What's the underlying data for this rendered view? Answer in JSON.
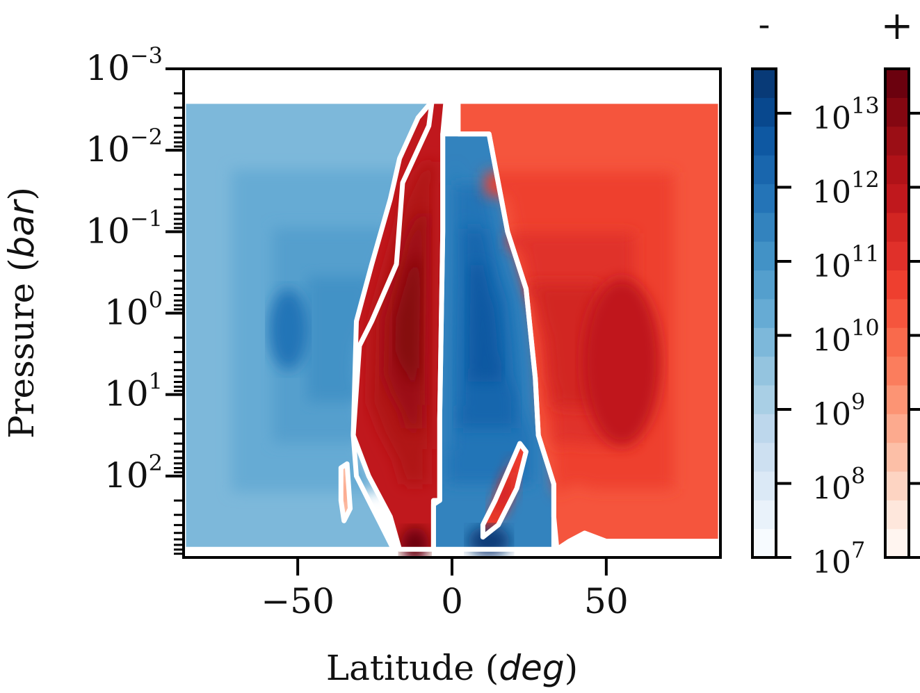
{
  "chart_data": {
    "type": "heatmap",
    "subtype": "filled-contour",
    "xlabel": {
      "text": "Latitude (",
      "italic": "deg",
      "close": ")"
    },
    "ylabel": {
      "text": "Pressure (",
      "italic": "bar",
      "close": ")"
    },
    "xlim": [
      -87,
      87
    ],
    "ylim_log10": [
      3,
      -3
    ],
    "y_scale": "log",
    "y_inverted": true,
    "x_ticks": [
      {
        "value": -50,
        "label": "−50"
      },
      {
        "value": 0,
        "label": "0"
      },
      {
        "value": 50,
        "label": "50"
      }
    ],
    "y_ticks": [
      {
        "exp": -3,
        "base": "10",
        "sup": "−3"
      },
      {
        "exp": -2,
        "base": "10",
        "sup": "−2"
      },
      {
        "exp": -1,
        "base": "10",
        "sup": "−1"
      },
      {
        "exp": 0,
        "base": "10",
        "sup": "0"
      },
      {
        "exp": 1,
        "base": "10",
        "sup": "1"
      },
      {
        "exp": 2,
        "base": "10",
        "sup": "2"
      }
    ],
    "zero_contour_color": "#ffffff",
    "colorbars": [
      {
        "sign_label": "-",
        "cmap": "Blues",
        "scale": "log",
        "range_exp": [
          7,
          13.6
        ]
      },
      {
        "sign_label": "+",
        "cmap": "Reds",
        "scale": "log",
        "range_exp": [
          7,
          13.6
        ]
      }
    ],
    "colorbar_ticks": [
      {
        "exp": 7,
        "base": "10",
        "sup": "7"
      },
      {
        "exp": 8,
        "base": "10",
        "sup": "8"
      },
      {
        "exp": 9,
        "base": "10",
        "sup": "9"
      },
      {
        "exp": 10,
        "base": "10",
        "sup": "10"
      },
      {
        "exp": 11,
        "base": "10",
        "sup": "11"
      },
      {
        "exp": 12,
        "base": "10",
        "sup": "12"
      },
      {
        "exp": 13,
        "base": "10",
        "sup": "13"
      }
    ],
    "blue_levels": [
      "#f7fbff",
      "#e9f2fa",
      "#dbe9f6",
      "#cde0f1",
      "#bdd7ec",
      "#a9cfe5",
      "#94c4df",
      "#7db8da",
      "#66abd4",
      "#549fcd",
      "#4292c6",
      "#3383be",
      "#2474b7",
      "#1966ad",
      "#0e58a2",
      "#08488e",
      "#083a77"
    ],
    "red_levels": [
      "#fff5f0",
      "#fee7dc",
      "#fdd4c2",
      "#fcbfa7",
      "#fcaa8e",
      "#fc9474",
      "#fb7d5d",
      "#f96a4c",
      "#f5553d",
      "#ee3f2f",
      "#e0302a",
      "#d22522",
      "#c0181d",
      "#b01218",
      "#9b0e15",
      "#840711",
      "#6b010e"
    ],
    "regions": [
      {
        "sign": "-",
        "name": "southern-cell",
        "polygon": [
          [
            -87,
            -2.6
          ],
          [
            -6.5,
            -2.6
          ],
          [
            -7.5,
            -2.3
          ],
          [
            -16,
            -1.6
          ],
          [
            -18,
            -0.6
          ],
          [
            -26,
            0.1
          ],
          [
            -30,
            0.4
          ],
          [
            -32,
            1.5
          ],
          [
            -31,
            2.0
          ],
          [
            -27,
            2.3
          ],
          [
            -23,
            2.6
          ],
          [
            -19,
            2.9
          ],
          [
            -87,
            2.9
          ]
        ],
        "peak_level": 11
      },
      {
        "sign": "+",
        "name": "tropical-cell",
        "polygon": [
          [
            -6.5,
            -2.6
          ],
          [
            -2,
            -2.6
          ],
          [
            -2,
            -2.3
          ],
          [
            -3,
            -2.2
          ],
          [
            -3,
            -1.0
          ],
          [
            -4,
            1.3
          ],
          [
            -4,
            2.3
          ],
          [
            -6,
            2.3
          ],
          [
            -6,
            2.9
          ],
          [
            -17,
            2.9
          ],
          [
            -20,
            2.5
          ],
          [
            -27,
            2.0
          ],
          [
            -32,
            1.5
          ],
          [
            -31,
            0.1
          ],
          [
            -26,
            -0.6
          ],
          [
            -20,
            -1.4
          ],
          [
            -17,
            -1.9
          ],
          [
            -11,
            -2.4
          ]
        ],
        "peak_level": 16
      },
      {
        "sign": "-",
        "name": "equatorial-cell",
        "polygon": [
          [
            -2,
            -2.6
          ],
          [
            -2,
            -2.2
          ],
          [
            2,
            -2.2
          ],
          [
            12,
            -2.2
          ],
          [
            14,
            -1.8
          ],
          [
            18,
            -1.0
          ],
          [
            24,
            -0.3
          ],
          [
            27,
            0.8
          ],
          [
            28,
            1.5
          ],
          [
            33,
            2.1
          ],
          [
            33,
            2.9
          ],
          [
            -6,
            2.9
          ],
          [
            -6,
            2.35
          ],
          [
            -4,
            2.3
          ],
          [
            -4,
            1.3
          ],
          [
            -3,
            -1.0
          ],
          [
            -3,
            -2.2
          ]
        ],
        "peak_level": 15
      },
      {
        "sign": "+",
        "name": "northern-cell",
        "polygon": [
          [
            2,
            -2.6
          ],
          [
            87,
            -2.6
          ],
          [
            87,
            2.8
          ],
          [
            50,
            2.8
          ],
          [
            43,
            2.7
          ],
          [
            38,
            2.8
          ],
          [
            34,
            2.9
          ],
          [
            33,
            2.5
          ],
          [
            33,
            2.1
          ],
          [
            28,
            1.5
          ],
          [
            27,
            0.8
          ],
          [
            24,
            -0.3
          ],
          [
            18,
            -1.0
          ],
          [
            14,
            -1.8
          ],
          [
            12,
            -2.2
          ],
          [
            2,
            -2.2
          ]
        ],
        "peak_level": 12
      },
      {
        "sign": "+",
        "name": "northern-filament",
        "polygon": [
          [
            10,
            2.6
          ],
          [
            14,
            2.3
          ],
          [
            22,
            1.6
          ],
          [
            24,
            1.7
          ],
          [
            21,
            2.15
          ],
          [
            15,
            2.6
          ],
          [
            10,
            2.75
          ]
        ],
        "peak_level": 13
      },
      {
        "sign": "+",
        "name": "southern-sliver",
        "polygon": [
          [
            -36,
            1.9
          ],
          [
            -34,
            1.85
          ],
          [
            -33,
            2.4
          ],
          [
            -35,
            2.55
          ],
          [
            -36,
            2.3
          ]
        ],
        "peak_level": 6
      }
    ]
  }
}
